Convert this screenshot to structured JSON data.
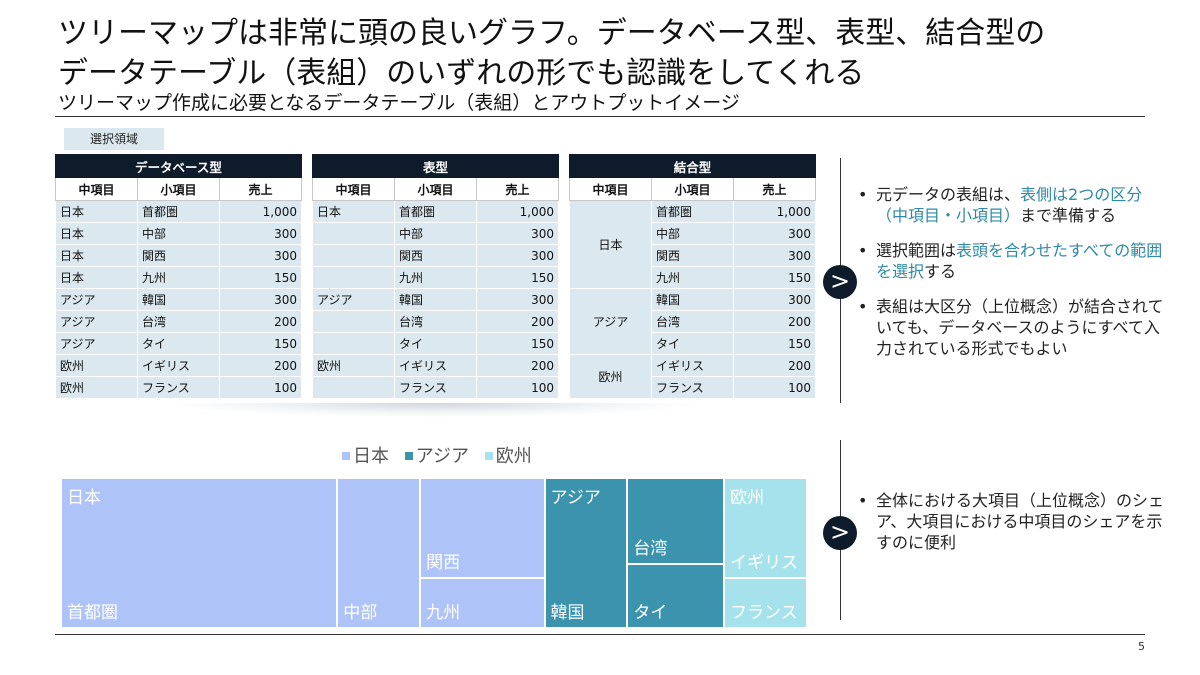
{
  "title": "ツリーマップは非常に頭の良いグラフ。データベース型、表型、結合型の\nデータテーブル（表組）のいずれの形でも認識をしてくれる",
  "subtitle": "ツリーマップ作成に必要となるデータテーブル（表組）とアウトプットイメージ",
  "selection_legend": "選択領域",
  "headers": [
    "中項目",
    "小項目",
    "売上"
  ],
  "tables": {
    "database": {
      "caption": "データベース型",
      "rows": [
        [
          "日本",
          "首都圏",
          "1,000"
        ],
        [
          "日本",
          "中部",
          "300"
        ],
        [
          "日本",
          "関西",
          "300"
        ],
        [
          "日本",
          "九州",
          "150"
        ],
        [
          "アジア",
          "韓国",
          "300"
        ],
        [
          "アジア",
          "台湾",
          "200"
        ],
        [
          "アジア",
          "タイ",
          "150"
        ],
        [
          "欧州",
          "イギリス",
          "200"
        ],
        [
          "欧州",
          "フランス",
          "100"
        ]
      ]
    },
    "table": {
      "caption": "表型",
      "rows": [
        [
          "日本",
          "首都圏",
          "1,000"
        ],
        [
          "",
          "中部",
          "300"
        ],
        [
          "",
          "関西",
          "300"
        ],
        [
          "",
          "九州",
          "150"
        ],
        [
          "アジア",
          "韓国",
          "300"
        ],
        [
          "",
          "台湾",
          "200"
        ],
        [
          "",
          "タイ",
          "150"
        ],
        [
          "欧州",
          "イギリス",
          "200"
        ],
        [
          "",
          "フランス",
          "100"
        ]
      ]
    },
    "merged": {
      "caption": "結合型",
      "groups": [
        "日本",
        "アジア",
        "欧州"
      ],
      "rows": [
        [
          "首都圏",
          "1,000"
        ],
        [
          "中部",
          "300"
        ],
        [
          "関西",
          "300"
        ],
        [
          "九州",
          "150"
        ],
        [
          "韓国",
          "300"
        ],
        [
          "台湾",
          "200"
        ],
        [
          "タイ",
          "150"
        ],
        [
          "イギリス",
          "200"
        ],
        [
          "フランス",
          "100"
        ]
      ]
    }
  },
  "notes_top": {
    "b1_pre": "元データの表組は、",
    "b1_hl": "表側は2つの区分（中項目・小項目）",
    "b1_post": "まで準備する",
    "b2_pre": "選択範囲は",
    "b2_hl": "表頭を合わせたすべての範囲を選択",
    "b2_post": "する",
    "b3": "表組は大区分（上位概念）が結合されていても、データベースのようにすべて入力されている形式でもよい"
  },
  "notes_bottom": {
    "b1": "全体における大項目（上位概念）のシェア、大項目における中項目のシェアを示すのに便利"
  },
  "arrow_glyph": ">",
  "legend": {
    "japan": "日本",
    "asia": "アジア",
    "europe": "欧州"
  },
  "colors": {
    "japan": "#aec3f7",
    "asia": "#3c93ad",
    "europe": "#a6e2ec",
    "header_dark": "#0d1b2a",
    "cell_bg": "#dbe8ef",
    "highlight": "#2e8aa6"
  },
  "chart_data": {
    "type": "treemap",
    "groups": [
      {
        "name": "日本",
        "items": [
          {
            "label": "首都圏",
            "value": 1000
          },
          {
            "label": "中部",
            "value": 300
          },
          {
            "label": "関西",
            "value": 300
          },
          {
            "label": "九州",
            "value": 150
          }
        ]
      },
      {
        "name": "アジア",
        "items": [
          {
            "label": "韓国",
            "value": 300
          },
          {
            "label": "台湾",
            "value": 200
          },
          {
            "label": "タイ",
            "value": 150
          }
        ]
      },
      {
        "name": "欧州",
        "items": [
          {
            "label": "イギリス",
            "value": 200
          },
          {
            "label": "フランス",
            "value": 100
          }
        ]
      }
    ]
  },
  "page_number": "5"
}
